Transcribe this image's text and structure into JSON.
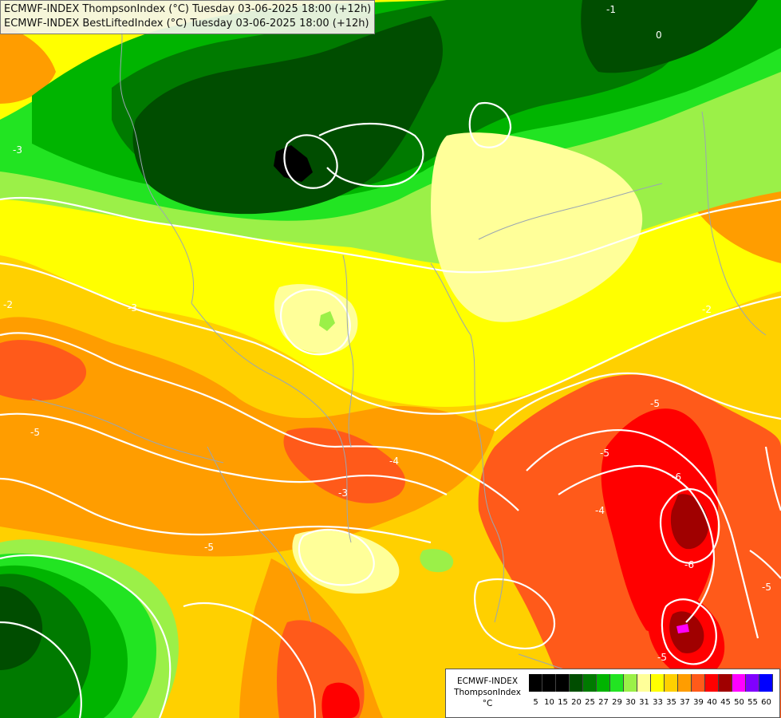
{
  "titles": {
    "line1": "ECMWF-INDEX ThompsonIndex (°C) Tuesday 03-06-2025 18:00 (+12h)",
    "line2": "ECMWF-INDEX BestLiftedIndex (°C) Tuesday 03-06-2025 18:00 (+12h)"
  },
  "legend": {
    "line1": "ECMWF-INDEX",
    "line2": "ThompsonIndex",
    "line3": "°C",
    "ticks": [
      "5",
      "10",
      "15",
      "20",
      "25",
      "27",
      "29",
      "30",
      "31",
      "33",
      "35",
      "37",
      "39",
      "40",
      "45",
      "50",
      "55",
      "60"
    ],
    "colors": [
      "#000000",
      "#000000",
      "#000000",
      "#004d00",
      "#007a00",
      "#00b400",
      "#22e422",
      "#9bf048",
      "#ffff99",
      "#ffff00",
      "#ffd000",
      "#ff9d00",
      "#ff5a1a",
      "#ff0000",
      "#a00000",
      "#ff00ff",
      "#8000ff",
      "#0000ff"
    ]
  },
  "contour_labels": [
    "-3",
    "-1",
    "0",
    "-2",
    "-3",
    "-2",
    "-5",
    "-4",
    "-5",
    "-3",
    "-4",
    "-5",
    "-6",
    "-5",
    "-6",
    "-5",
    "-5"
  ],
  "palette": {
    "darkgreen": "#004d00",
    "green": "#007a00",
    "midgreen": "#00b400",
    "brightgreen": "#22e422",
    "lightgreen": "#9bf048",
    "paleyellow": "#ffff99",
    "yellow": "#ffff00",
    "gold": "#ffd000",
    "orange": "#ff9d00",
    "redorange": "#ff5a1a",
    "red": "#ff0000",
    "darkred": "#a00000",
    "black": "#000000",
    "magenta": "#ff00ff"
  }
}
